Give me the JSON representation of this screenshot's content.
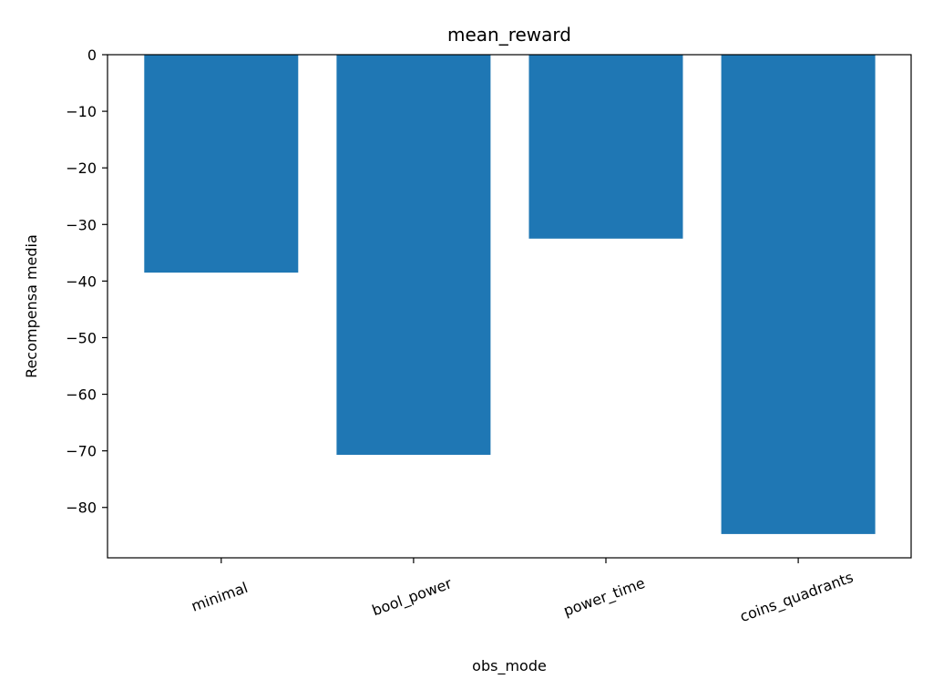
{
  "chart_data": {
    "type": "bar",
    "title": "mean_reward",
    "xlabel": "obs_mode",
    "ylabel": "Recompensa media",
    "categories": [
      "minimal",
      "bool_power",
      "power_time",
      "coins_quadrants"
    ],
    "values": [
      -38.5,
      -70.7,
      -32.5,
      -84.7
    ],
    "ylim": [
      -88.9,
      0
    ],
    "yticks": [
      0,
      -10,
      -20,
      -30,
      -40,
      -50,
      -60,
      -70,
      -80
    ],
    "bar_color": "#1f77b4",
    "grid": false,
    "legend": "none"
  }
}
